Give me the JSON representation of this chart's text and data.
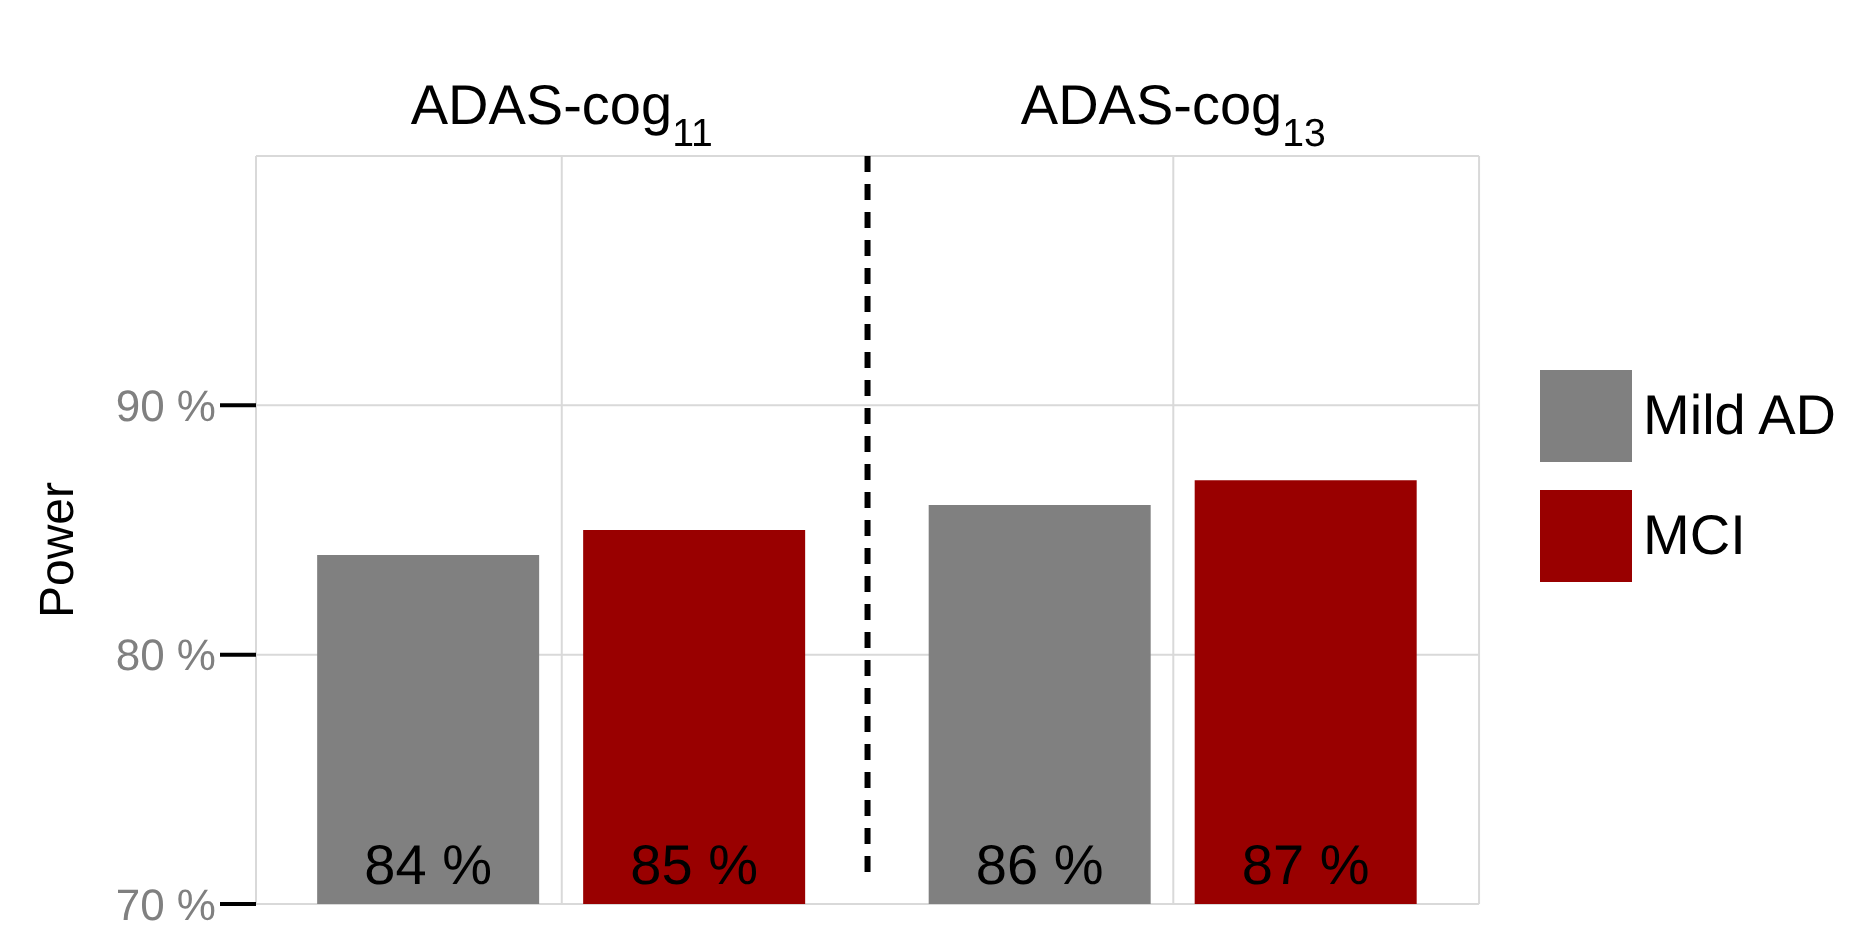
{
  "chart_data": {
    "type": "bar",
    "categories": [
      "ADAS-cog$_{11}$",
      "ADAS-cog$_{13}$"
    ],
    "ylabel": "Power",
    "series": [
      {
        "name": "Mild AD",
        "color": "#808080",
        "values": [
          84,
          86
        ],
        "value_labels": [
          "84 %",
          "86 %"
        ]
      },
      {
        "name": "MCI",
        "color": "#990000",
        "values": [
          85,
          87
        ],
        "value_labels": [
          "85 %",
          "87 %"
        ]
      }
    ],
    "ylim": [
      70,
      100
    ],
    "yticks": [
      {
        "value": 70,
        "label": "70 %"
      },
      {
        "value": 80,
        "label": "80 %"
      },
      {
        "value": 90,
        "label": "90 %"
      }
    ],
    "grid": true,
    "legend": "right"
  }
}
